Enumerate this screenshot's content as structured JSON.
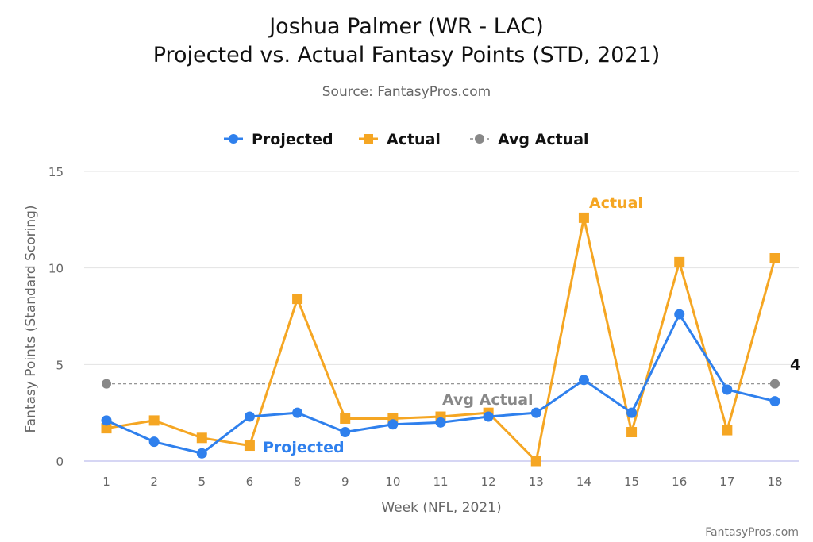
{
  "chart_data": {
    "type": "line",
    "title": [
      "Joshua Palmer (WR - LAC)",
      "Projected vs. Actual Fantasy Points (STD, 2021)"
    ],
    "subtitle": "Source: FantasyPros.com",
    "xlabel": "Week (NFL, 2021)",
    "ylabel": "Fantasy Points (Standard Scoring)",
    "ylim": [
      0,
      15
    ],
    "yticks": [
      0,
      5,
      10,
      15
    ],
    "categories": [
      "1",
      "2",
      "5",
      "6",
      "8",
      "9",
      "10",
      "11",
      "12",
      "13",
      "14",
      "15",
      "16",
      "17",
      "18"
    ],
    "grid": true,
    "legend_position": "top-center",
    "series": [
      {
        "name": "Projected",
        "color": "#2f80ed",
        "marker": "circle",
        "values": [
          2.1,
          1.0,
          0.4,
          2.3,
          2.5,
          1.5,
          1.9,
          2.0,
          2.3,
          2.5,
          4.2,
          2.5,
          7.6,
          3.7,
          3.1
        ]
      },
      {
        "name": "Actual",
        "color": "#f5a623",
        "marker": "square",
        "values": [
          1.7,
          2.1,
          1.2,
          0.8,
          8.4,
          2.2,
          2.2,
          2.3,
          2.5,
          0.0,
          12.6,
          1.5,
          10.3,
          1.6,
          10.5
        ]
      },
      {
        "name": "Avg Actual",
        "color": "#888888",
        "marker": "circle",
        "style": "dashed",
        "value": 4
      }
    ],
    "annotations": {
      "avg_value_label": "4",
      "avg_series_label": "Avg Actual",
      "projected_label": "Projected",
      "actual_label": "Actual"
    },
    "credit": "FantasyPros.com"
  }
}
